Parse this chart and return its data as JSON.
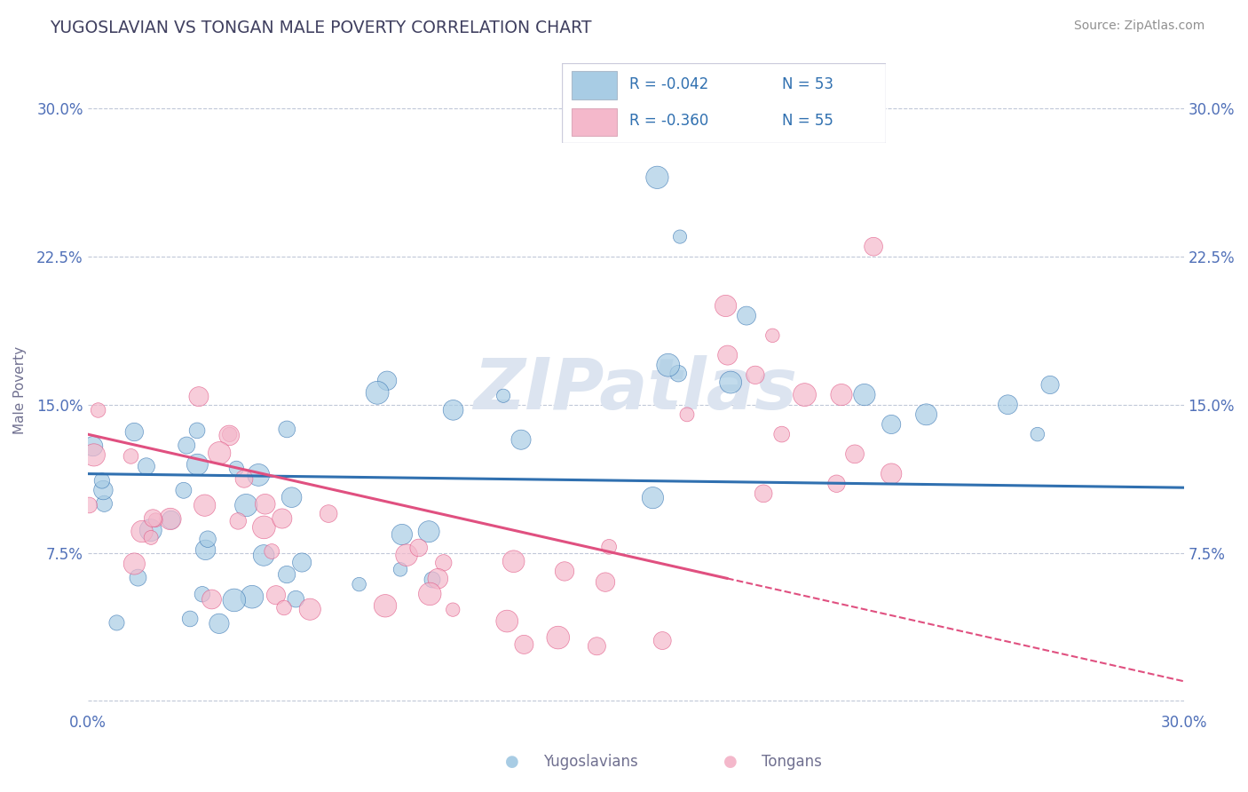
{
  "title": "YUGOSLAVIAN VS TONGAN MALE POVERTY CORRELATION CHART",
  "source": "Source: ZipAtlas.com",
  "ylabel": "Male Poverty",
  "xlim": [
    0.0,
    0.3
  ],
  "ylim": [
    -0.005,
    0.32
  ],
  "yticks": [
    0.0,
    0.075,
    0.15,
    0.225,
    0.3
  ],
  "ytick_labels_left": [
    "",
    "7.5%",
    "15.0%",
    "22.5%",
    "30.0%"
  ],
  "ytick_labels_right": [
    "",
    "7.5%",
    "15.0%",
    "22.5%",
    "30.0%"
  ],
  "xticks": [
    0.0,
    0.075,
    0.15,
    0.225,
    0.3
  ],
  "xtick_labels": [
    "0.0%",
    "",
    "",
    "",
    "30.0%"
  ],
  "legend_r1": "R = -0.042",
  "legend_n1": "N = 53",
  "legend_r2": "R = -0.360",
  "legend_n2": "N = 55",
  "color_yugoslavian": "#a8cce4",
  "color_tongan": "#f4b8cb",
  "color_trend_yug": "#3070b0",
  "color_trend_ton": "#e05080",
  "background_plot": "#ffffff",
  "background_fig": "#ffffff",
  "grid_color": "#c0c8d8",
  "title_color": "#404060",
  "axis_label_color": "#707090",
  "tick_label_color": "#5070b8",
  "source_color": "#909090",
  "watermark_color": "#dce4f0",
  "n_yug": 53,
  "n_ton": 55,
  "r_yug": -0.042,
  "r_ton": -0.36,
  "trend_yug_x0": 0.0,
  "trend_yug_x1": 0.3,
  "trend_yug_y0": 0.115,
  "trend_yug_y1": 0.108,
  "trend_ton_x0": 0.0,
  "trend_ton_y0": 0.135,
  "trend_ton_xsolid": 0.175,
  "trend_ton_x1": 0.3,
  "trend_ton_y1": 0.01
}
